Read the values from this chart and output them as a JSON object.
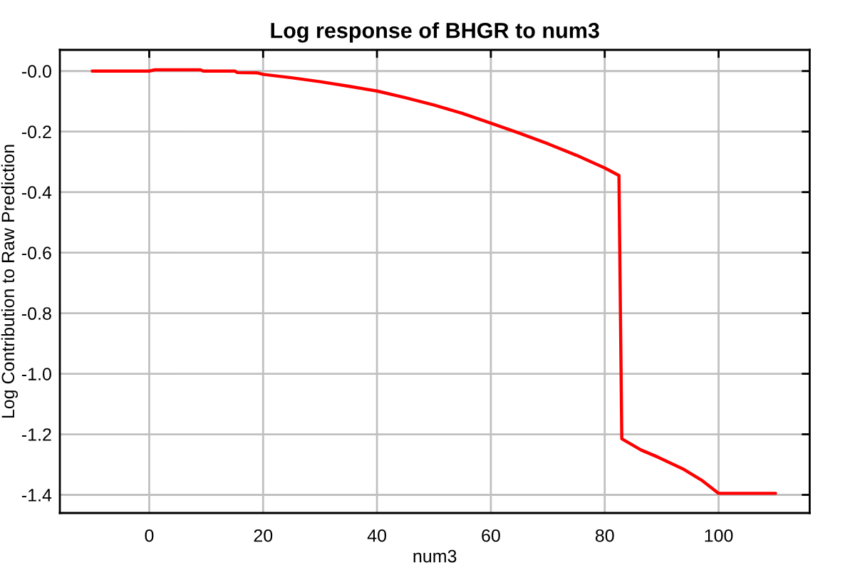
{
  "chart_data": {
    "type": "line",
    "title": "Log response of BHGR to num3",
    "xlabel": "num3",
    "ylabel": "Log Contribution to Raw Prediction",
    "x": [
      -10,
      0,
      1,
      9,
      9.5,
      15,
      15.5,
      19,
      20,
      25,
      30,
      35,
      40,
      45,
      50,
      55,
      60,
      65,
      70,
      75,
      80,
      82.5,
      83,
      86.4,
      89.3,
      93.9,
      97.2,
      100,
      110
    ],
    "series": [
      {
        "color": "#ff0000",
        "values": [
          0.0,
          0.0,
          0.004,
          0.004,
          0.0,
          0.0,
          -0.005,
          -0.006,
          -0.011,
          -0.022,
          -0.035,
          -0.05,
          -0.066,
          -0.088,
          -0.112,
          -0.14,
          -0.172,
          -0.205,
          -0.24,
          -0.278,
          -0.32,
          -0.345,
          -1.215,
          -1.252,
          -1.275,
          -1.316,
          -1.354,
          -1.395,
          -1.395
        ]
      }
    ],
    "xlim": [
      -15.7,
      116
    ],
    "ylim": [
      -1.46,
      0.07
    ],
    "xticks": [
      0,
      20,
      40,
      60,
      80,
      100
    ],
    "yticks": [
      {
        "value": 0,
        "label": "-0.0"
      },
      -0.2,
      -0.4,
      -0.6,
      -0.8,
      {
        "value": -1.0,
        "label": "-1.0"
      },
      -1.2,
      -1.4
    ],
    "grid": true,
    "line_style": "solid"
  }
}
